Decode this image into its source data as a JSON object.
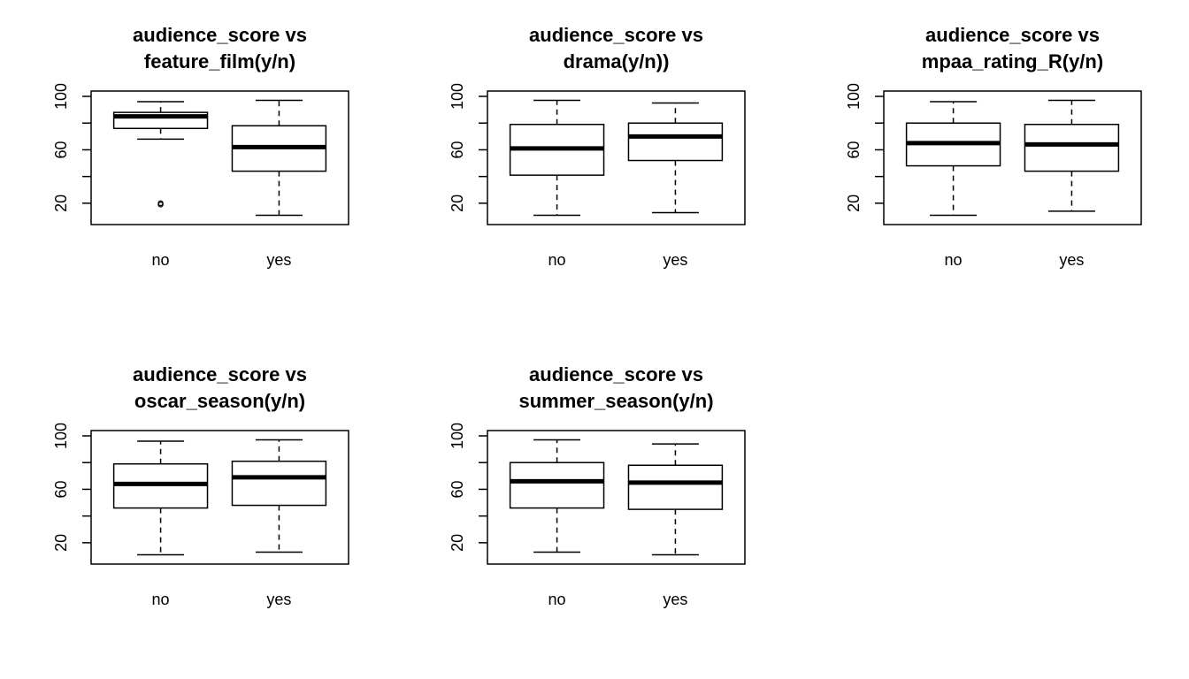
{
  "chart_data": [
    {
      "type": "box",
      "title": [
        "audience_score vs",
        "feature_film(y/n)"
      ],
      "categories": [
        "no",
        "yes"
      ],
      "ylim": [
        8,
        100
      ],
      "yticks": [
        20,
        60,
        100
      ],
      "boxes": [
        {
          "min": 68,
          "q1": 76,
          "median": 85,
          "q3": 88,
          "max": 96,
          "outliers": [
            19,
            20
          ]
        },
        {
          "min": 11,
          "q1": 44,
          "median": 62,
          "q3": 78,
          "max": 97,
          "outliers": []
        }
      ]
    },
    {
      "type": "box",
      "title": [
        "audience_score vs",
        "drama(y/n))"
      ],
      "categories": [
        "no",
        "yes"
      ],
      "ylim": [
        8,
        100
      ],
      "yticks": [
        20,
        60,
        100
      ],
      "boxes": [
        {
          "min": 11,
          "q1": 41,
          "median": 61,
          "q3": 79,
          "max": 97,
          "outliers": []
        },
        {
          "min": 13,
          "q1": 52,
          "median": 70,
          "q3": 80,
          "max": 95,
          "outliers": []
        }
      ]
    },
    {
      "type": "box",
      "title": [
        "audience_score vs",
        "mpaa_rating_R(y/n)"
      ],
      "categories": [
        "no",
        "yes"
      ],
      "ylim": [
        8,
        100
      ],
      "yticks": [
        20,
        60,
        100
      ],
      "boxes": [
        {
          "min": 11,
          "q1": 48,
          "median": 65,
          "q3": 80,
          "max": 96,
          "outliers": []
        },
        {
          "min": 14,
          "q1": 44,
          "median": 64,
          "q3": 79,
          "max": 97,
          "outliers": []
        }
      ]
    },
    {
      "type": "box",
      "title": [
        "audience_score vs",
        "oscar_season(y/n)"
      ],
      "categories": [
        "no",
        "yes"
      ],
      "ylim": [
        8,
        100
      ],
      "yticks": [
        20,
        60,
        100
      ],
      "boxes": [
        {
          "min": 11,
          "q1": 46,
          "median": 64,
          "q3": 79,
          "max": 96,
          "outliers": []
        },
        {
          "min": 13,
          "q1": 48,
          "median": 69,
          "q3": 81,
          "max": 97,
          "outliers": []
        }
      ]
    },
    {
      "type": "box",
      "title": [
        "audience_score vs",
        "summer_season(y/n)"
      ],
      "categories": [
        "no",
        "yes"
      ],
      "ylim": [
        8,
        100
      ],
      "yticks": [
        20,
        60,
        100
      ],
      "boxes": [
        {
          "min": 13,
          "q1": 46,
          "median": 66,
          "q3": 80,
          "max": 97,
          "outliers": []
        },
        {
          "min": 11,
          "q1": 45,
          "median": 65,
          "q3": 78,
          "max": 94,
          "outliers": []
        }
      ]
    }
  ]
}
